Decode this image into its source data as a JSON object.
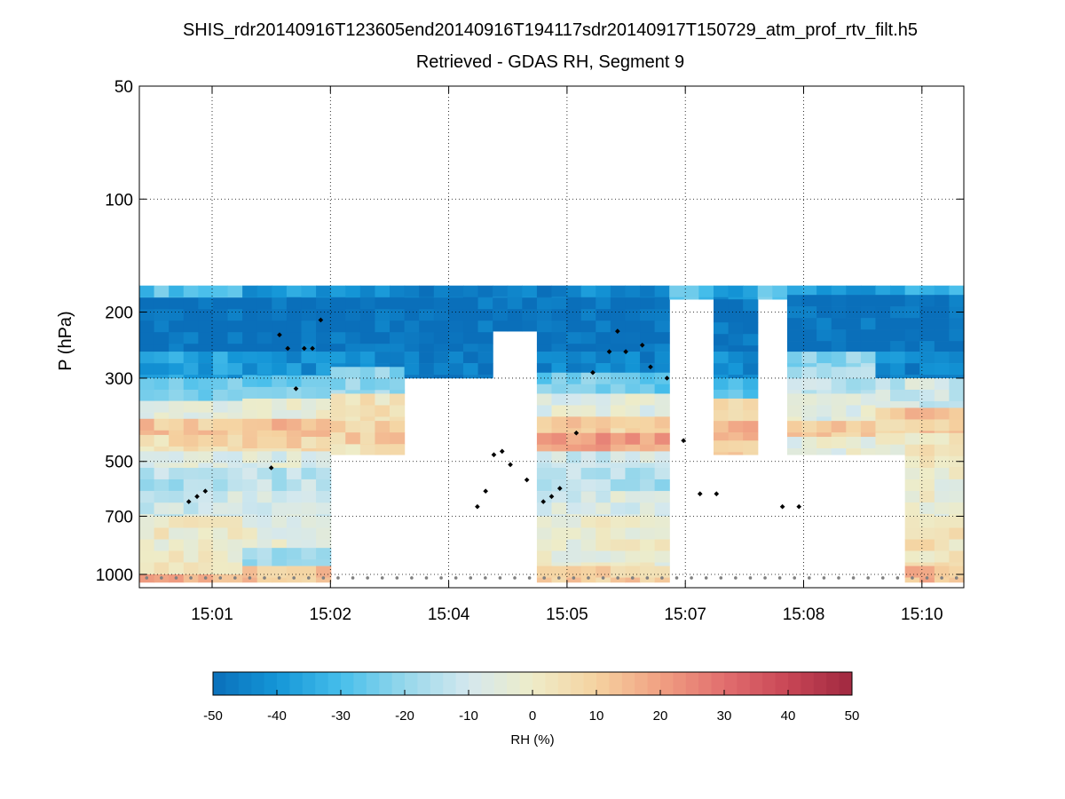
{
  "chart_data": {
    "type": "heatmap",
    "title": "SHIS_rdr20140916T123605end20140916T194117sdr20140917T150729_atm_prof_rtv_filt.h5",
    "subtitle": "Retrieved - GDAS RH, Segment 9",
    "xlabel": "",
    "ylabel": "P (hPa)",
    "y_scale": "log",
    "y_reversed": true,
    "ylim": [
      50,
      1100
    ],
    "y_ticks": [
      50,
      100,
      200,
      300,
      500,
      700,
      1000
    ],
    "x_tick_labels": [
      "15:01",
      "15:02",
      "15:04",
      "15:05",
      "15:07",
      "15:08",
      "15:10"
    ],
    "grid": true,
    "colorbar": {
      "label": "RH (%)",
      "range": [
        -50,
        50
      ],
      "ticks": [
        -50,
        -40,
        -30,
        -20,
        -10,
        0,
        10,
        20,
        30,
        40,
        50
      ],
      "low_color": "#0a6fba",
      "mid_color": "#eeeec8",
      "high_color": "#a02840"
    },
    "columns": 56,
    "profiles": [
      {
        "start": 0,
        "end": 7,
        "top_p": 170,
        "blocks": [
          [
            170,
            183,
            -28
          ],
          [
            183,
            255,
            -50
          ],
          [
            255,
            300,
            -38
          ],
          [
            300,
            345,
            -22
          ],
          [
            345,
            385,
            -4
          ],
          [
            385,
            425,
            12
          ],
          [
            425,
            470,
            6
          ],
          [
            470,
            520,
            -5
          ],
          [
            520,
            600,
            -16
          ],
          [
            600,
            700,
            -10
          ],
          [
            700,
            1000,
            0
          ],
          [
            1000,
            1050,
            16
          ]
        ],
        "surface_p": 640
      },
      {
        "start": 7,
        "end": 13,
        "top_p": 170,
        "blocks": [
          [
            170,
            183,
            -40
          ],
          [
            183,
            255,
            -50
          ],
          [
            255,
            295,
            -42
          ],
          [
            295,
            340,
            -25
          ],
          [
            340,
            385,
            -2
          ],
          [
            385,
            430,
            14
          ],
          [
            430,
            470,
            8
          ],
          [
            470,
            520,
            -6
          ],
          [
            520,
            600,
            -14
          ],
          [
            600,
            700,
            -8
          ],
          [
            700,
            850,
            -4
          ],
          [
            850,
            950,
            -18
          ],
          [
            950,
            1050,
            12
          ]
        ],
        "surface_p": 600
      },
      {
        "start": 13,
        "end": 18,
        "top_p": 170,
        "blocks": [
          [
            170,
            183,
            -44
          ],
          [
            183,
            255,
            -50
          ],
          [
            255,
            280,
            -42
          ],
          [
            280,
            330,
            -20
          ],
          [
            330,
            390,
            4
          ],
          [
            390,
            450,
            10
          ],
          [
            450,
            480,
            2
          ]
        ],
        "surface_p": 480
      },
      {
        "start": 18,
        "end": 24,
        "top_p": 170,
        "blocks": [
          [
            170,
            183,
            -48
          ],
          [
            183,
            255,
            -50
          ],
          [
            255,
            300,
            -48
          ]
        ],
        "surface_p": 300
      },
      {
        "start": 24,
        "end": 27,
        "top_p": 170,
        "blocks": [
          [
            170,
            183,
            -42
          ],
          [
            183,
            225,
            -50
          ]
        ],
        "surface_p": 225
      },
      {
        "start": 27,
        "end": 36,
        "top_p": 170,
        "blocks": [
          [
            170,
            183,
            -44
          ],
          [
            183,
            255,
            -50
          ],
          [
            255,
            290,
            -45
          ],
          [
            290,
            330,
            -25
          ],
          [
            330,
            380,
            -5
          ],
          [
            380,
            420,
            10
          ],
          [
            420,
            470,
            20
          ],
          [
            470,
            520,
            -10
          ],
          [
            520,
            600,
            -16
          ],
          [
            600,
            700,
            -8
          ],
          [
            700,
            950,
            -2
          ],
          [
            950,
            1050,
            10
          ]
        ],
        "surface_p": 1050
      },
      {
        "start": 36,
        "end": 39,
        "top_p": 170,
        "blocks": [
          [
            170,
            185,
            -30
          ]
        ],
        "surface_p": 185
      },
      {
        "start": 39,
        "end": 42,
        "top_p": 170,
        "blocks": [
          [
            170,
            185,
            -42
          ],
          [
            185,
            255,
            -50
          ],
          [
            255,
            300,
            -44
          ],
          [
            300,
            340,
            -30
          ],
          [
            340,
            390,
            8
          ],
          [
            390,
            440,
            18
          ],
          [
            440,
            480,
            12
          ]
        ],
        "surface_p": 480
      },
      {
        "start": 42,
        "end": 44,
        "top_p": 170,
        "blocks": [
          [
            170,
            185,
            -24
          ]
        ],
        "surface_p": 185
      },
      {
        "start": 44,
        "end": 50,
        "top_p": 170,
        "blocks": [
          [
            170,
            180,
            -38
          ],
          [
            180,
            255,
            -50
          ],
          [
            255,
            280,
            -20
          ],
          [
            280,
            330,
            -14
          ],
          [
            330,
            390,
            -6
          ],
          [
            390,
            430,
            10
          ],
          [
            430,
            480,
            -4
          ]
        ],
        "surface_p": 480
      },
      {
        "start": 50,
        "end": 52,
        "top_p": 170,
        "blocks": [
          [
            170,
            180,
            -34
          ],
          [
            180,
            255,
            -50
          ],
          [
            255,
            300,
            -42
          ],
          [
            300,
            360,
            -12
          ],
          [
            360,
            420,
            6
          ],
          [
            420,
            480,
            -2
          ]
        ],
        "surface_p": 520
      },
      {
        "start": 52,
        "end": 56,
        "top_p": 170,
        "blocks": [
          [
            170,
            180,
            -34
          ],
          [
            180,
            255,
            -50
          ],
          [
            255,
            300,
            -45
          ],
          [
            300,
            360,
            -10
          ],
          [
            360,
            420,
            12
          ],
          [
            420,
            520,
            2
          ],
          [
            520,
            700,
            -2
          ],
          [
            700,
            950,
            4
          ],
          [
            950,
            1050,
            14
          ]
        ],
        "surface_p": 1050
      }
    ],
    "markers": {
      "points": [
        [
          0.06,
          640
        ],
        [
          0.07,
          620
        ],
        [
          0.08,
          600
        ],
        [
          0.16,
          520
        ],
        [
          0.17,
          230
        ],
        [
          0.18,
          250
        ],
        [
          0.19,
          320
        ],
        [
          0.2,
          250
        ],
        [
          0.21,
          250
        ],
        [
          0.22,
          210
        ],
        [
          0.41,
          660
        ],
        [
          0.42,
          600
        ],
        [
          0.43,
          480
        ],
        [
          0.44,
          470
        ],
        [
          0.45,
          510
        ],
        [
          0.47,
          560
        ],
        [
          0.49,
          640
        ],
        [
          0.5,
          620
        ],
        [
          0.51,
          590
        ],
        [
          0.53,
          420
        ],
        [
          0.55,
          290
        ],
        [
          0.57,
          255
        ],
        [
          0.58,
          225
        ],
        [
          0.59,
          255
        ],
        [
          0.61,
          245
        ],
        [
          0.62,
          280
        ],
        [
          0.64,
          300
        ],
        [
          0.66,
          440
        ],
        [
          0.68,
          610
        ],
        [
          0.7,
          610
        ],
        [
          0.78,
          660
        ],
        [
          0.8,
          660
        ]
      ],
      "surface_p": 1050
    }
  }
}
